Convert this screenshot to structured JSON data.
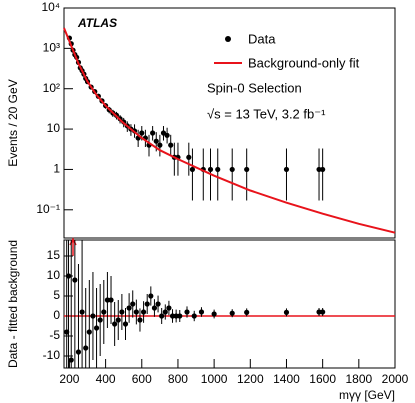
{
  "chart_data": [
    {
      "type": "scatter",
      "log_y": true,
      "ylabel": "Events / 20 GeV",
      "annotations": [
        "ATLAS",
        "Spin-0 Selection",
        "√s = 13 TeV, 3.2 fb⁻¹"
      ],
      "xlim": [
        170,
        2000
      ],
      "ylim": [
        0.02,
        10000
      ],
      "yticks": [
        {
          "value": 0.1,
          "label": "10⁻¹"
        },
        1,
        10,
        {
          "value": 100,
          "label": "10²"
        },
        {
          "value": 1000,
          "label": "10³"
        },
        {
          "value": 10000,
          "label": "10⁴"
        }
      ],
      "series": [
        {
          "name": "Data",
          "color": "#000000",
          "x": [
            200,
            210,
            220,
            230,
            240,
            250,
            260,
            270,
            280,
            290,
            300,
            320,
            340,
            360,
            380,
            400,
            420,
            440,
            460,
            480,
            500,
            520,
            540,
            560,
            580,
            600,
            620,
            640,
            660,
            680,
            700,
            720,
            740,
            760,
            780,
            800,
            860,
            880,
            940,
            980,
            1020,
            1100,
            1180,
            1400,
            1580,
            1600
          ],
          "values": [
            1800,
            1300,
            900,
            700,
            600,
            450,
            330,
            280,
            230,
            180,
            150,
            110,
            85,
            65,
            50,
            38,
            30,
            25,
            22,
            18,
            15,
            12,
            10,
            9,
            6,
            8,
            6,
            4,
            8,
            5,
            4,
            8,
            7,
            4,
            2,
            2,
            2,
            1,
            1,
            1,
            1,
            1,
            1,
            1,
            1,
            1
          ],
          "errors_low": [
            42,
            36,
            30,
            26,
            24,
            21,
            18,
            17,
            15,
            13,
            12,
            10,
            9,
            8,
            7,
            6,
            5.5,
            5,
            4.7,
            4.2,
            3.9,
            3.5,
            3.2,
            2.9,
            2.4,
            2.8,
            2.4,
            1.9,
            2.8,
            2.2,
            1.9,
            2.8,
            2.6,
            1.9,
            1.3,
            1.3,
            1.3,
            0.83,
            0.83,
            0.83,
            0.83,
            0.83,
            0.83,
            0.83,
            0.83,
            0.83
          ],
          "errors_high": [
            42,
            36,
            30,
            26,
            24,
            21,
            18,
            17,
            15,
            13,
            12,
            10,
            9,
            8,
            7,
            6,
            5.5,
            5,
            4.7,
            4.2,
            3.9,
            3.5,
            3.2,
            4.1,
            3.6,
            3.9,
            3.6,
            3.2,
            3.9,
            3.4,
            3.2,
            3.9,
            3.8,
            3.2,
            2.6,
            2.6,
            2.6,
            2.3,
            2.3,
            2.3,
            2.3,
            2.3,
            2.3,
            2.3,
            2.3,
            2.3
          ]
        },
        {
          "name": "Background-only fit",
          "color": "#e8131b",
          "x": [
            170,
            200,
            250,
            300,
            350,
            400,
            500,
            600,
            700,
            800,
            1000,
            1200,
            1400,
            1600,
            1800,
            2000
          ],
          "values": [
            3200,
            1500,
            420,
            150,
            70,
            38,
            14,
            6,
            3,
            1.8,
            0.7,
            0.3,
            0.15,
            0.08,
            0.045,
            0.027
          ]
        }
      ]
    },
    {
      "type": "scatter",
      "xlabel": "mγγ [GeV]",
      "ylabel": "Data - fitted background",
      "xlim": [
        170,
        2000
      ],
      "ylim": [
        -13,
        19
      ],
      "xticks": [
        200,
        400,
        600,
        800,
        1000,
        1200,
        1400,
        1600,
        1800,
        2000
      ],
      "yticks": [
        -10,
        -5,
        0,
        5,
        10,
        15
      ],
      "series": [
        {
          "color": "#000000",
          "x": [
            185,
            195,
            210,
            230,
            250,
            270,
            290,
            310,
            330,
            350,
            370,
            390,
            410,
            430,
            450,
            470,
            490,
            510,
            530,
            550,
            570,
            590,
            610,
            630,
            650,
            670,
            690,
            710,
            730,
            750,
            770,
            790,
            810,
            850,
            890,
            930,
            1000,
            1100,
            1180,
            1400,
            1580,
            1600
          ],
          "values": [
            -4,
            10,
            -11,
            9,
            -9,
            1,
            -8,
            -4,
            0,
            -3,
            -1,
            1,
            4,
            4,
            -2,
            -1,
            1,
            -2,
            2,
            3,
            1,
            -1,
            1,
            3,
            5,
            2,
            3,
            0,
            1,
            2,
            0,
            0,
            0,
            1,
            0,
            1,
            0.5,
            0.7,
            0.9,
            0.9,
            1,
            1
          ],
          "errors": [
            40,
            40,
            30,
            26,
            22,
            18,
            15,
            13,
            11,
            10,
            9,
            8,
            7,
            6,
            5.5,
            5,
            4.5,
            4,
            3.7,
            3.4,
            3.1,
            2.9,
            2.7,
            2.5,
            2.4,
            2.2,
            2.1,
            2,
            1.9,
            1.8,
            1.7,
            1.6,
            1.5,
            1.4,
            1.3,
            1.2,
            1.1,
            1,
            1,
            1,
            1,
            1
          ]
        }
      ]
    }
  ]
}
